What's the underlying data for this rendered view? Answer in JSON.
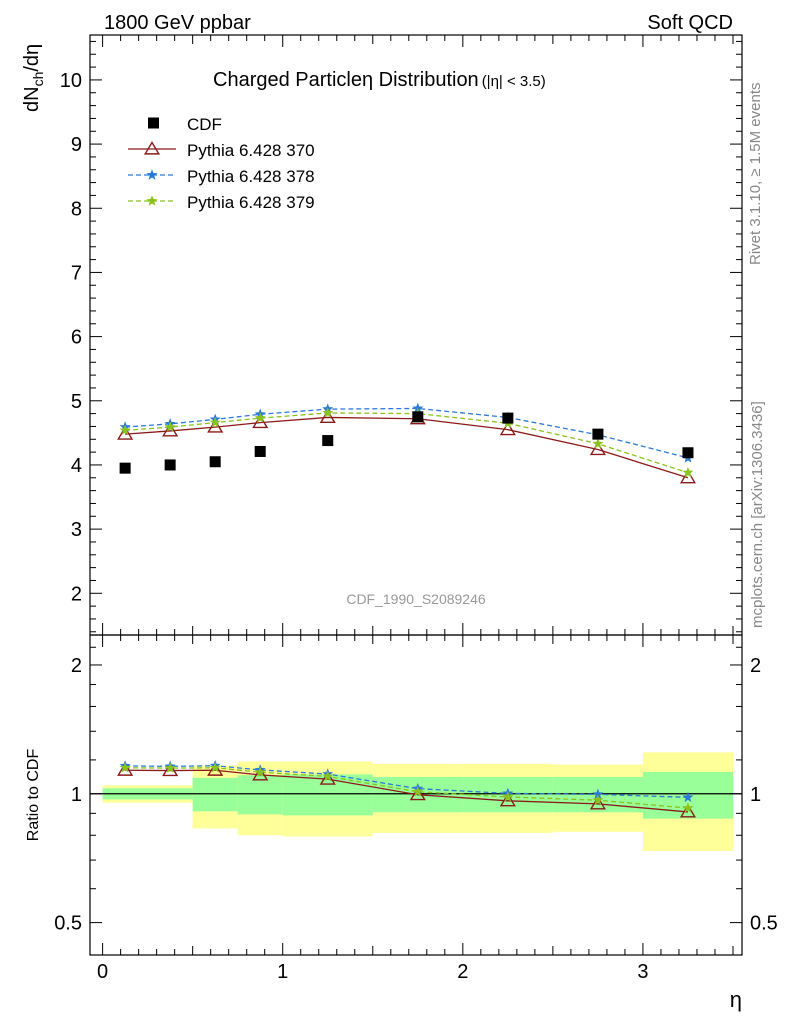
{
  "header": {
    "left": "1800 GeV ppbar",
    "right": "Soft QCD"
  },
  "side": {
    "rivet": "Rivet 3.1.10, ≥ 1.5M events",
    "mcplots": "mcplots.cern.ch [arXiv:1306.3436]"
  },
  "chart_data": {
    "type": "scatter",
    "title": "Charged Particleη Distribution",
    "title_suffix": "(|η| < 3.5)",
    "watermark": "CDF_1990_S2089246",
    "xlabel": "η",
    "ylabel_top": "dN",
    "ylabel_sub": "ch",
    "ylabel_end": "/dη",
    "ylabel_ratio": "Ratio to CDF",
    "xlim": [
      -0.07,
      3.55
    ],
    "ylim_main": [
      1.35,
      10.7
    ],
    "ylim_ratio_log": [
      0.42,
      2.35
    ],
    "x_ticks": [
      0,
      1,
      2,
      3
    ],
    "x_tick_labels": [
      "0",
      "1",
      "2",
      "3"
    ],
    "y_ticks_main": [
      2,
      3,
      4,
      5,
      6,
      7,
      8,
      9,
      10
    ],
    "y_tick_labels_main": [
      "2",
      "3",
      "4",
      "5",
      "6",
      "7",
      "8",
      "9",
      "10"
    ],
    "y_ticks_ratio": [
      0.5,
      1,
      2
    ],
    "y_tick_labels_ratio": [
      "0.5",
      "1",
      "2"
    ],
    "data": {
      "name": "CDF",
      "x": [
        0.125,
        0.375,
        0.625,
        0.875,
        1.25,
        1.75,
        2.25,
        2.75,
        3.25
      ],
      "y": [
        3.95,
        4.0,
        4.05,
        4.21,
        4.38,
        4.75,
        4.73,
        4.48,
        4.19
      ]
    },
    "series": [
      {
        "name": "Pythia 6.428 370",
        "color": "#8b1a1a",
        "marker": "triangle",
        "dash": "solid",
        "x": [
          0.125,
          0.375,
          0.625,
          0.875,
          1.25,
          1.75,
          2.25,
          2.75,
          3.25
        ],
        "y": [
          4.48,
          4.53,
          4.59,
          4.66,
          4.74,
          4.72,
          4.55,
          4.24,
          3.8
        ],
        "ratio": [
          1.135,
          1.133,
          1.135,
          1.107,
          1.082,
          0.995,
          0.963,
          0.947,
          0.907
        ]
      },
      {
        "name": "Pythia 6.428 378",
        "color": "#2b7bd6",
        "marker": "star",
        "dash": "dashed",
        "x": [
          0.125,
          0.375,
          0.625,
          0.875,
          1.25,
          1.75,
          2.25,
          2.75,
          3.25
        ],
        "y": [
          4.59,
          4.64,
          4.71,
          4.79,
          4.87,
          4.88,
          4.74,
          4.47,
          4.11
        ],
        "ratio": [
          1.162,
          1.159,
          1.163,
          1.137,
          1.112,
          1.028,
          1.002,
          0.997,
          0.981
        ]
      },
      {
        "name": "Pythia 6.428 379",
        "color": "#8ac21e",
        "marker": "star",
        "dash": "dashed",
        "x": [
          0.125,
          0.375,
          0.625,
          0.875,
          1.25,
          1.75,
          2.25,
          2.75,
          3.25
        ],
        "y": [
          4.54,
          4.59,
          4.66,
          4.73,
          4.81,
          4.8,
          4.65,
          4.33,
          3.88
        ],
        "ratio": [
          1.15,
          1.148,
          1.15,
          1.123,
          1.098,
          1.011,
          0.983,
          0.966,
          0.926
        ]
      }
    ],
    "bands": [
      {
        "x0": 0.0,
        "x1": 0.5,
        "green": [
          0.97,
          1.03
        ],
        "yellow": [
          0.953,
          1.047
        ]
      },
      {
        "x0": 0.5,
        "x1": 0.75,
        "green": [
          0.91,
          1.09
        ],
        "yellow": [
          0.83,
          1.165
        ]
      },
      {
        "x0": 0.75,
        "x1": 1.0,
        "green": [
          0.895,
          1.105
        ],
        "yellow": [
          0.8,
          1.19
        ]
      },
      {
        "x0": 1.0,
        "x1": 1.5,
        "green": [
          0.89,
          1.11
        ],
        "yellow": [
          0.795,
          1.19
        ]
      },
      {
        "x0": 1.5,
        "x1": 2.0,
        "green": [
          0.905,
          1.095
        ],
        "yellow": [
          0.81,
          1.175
        ]
      },
      {
        "x0": 2.0,
        "x1": 2.5,
        "green": [
          0.905,
          1.095
        ],
        "yellow": [
          0.81,
          1.175
        ]
      },
      {
        "x0": 2.5,
        "x1": 3.0,
        "green": [
          0.905,
          1.095
        ],
        "yellow": [
          0.815,
          1.17
        ]
      },
      {
        "x0": 3.0,
        "x1": 3.5,
        "green": [
          0.875,
          1.125
        ],
        "yellow": [
          0.735,
          1.25
        ]
      }
    ],
    "legend_position": "top-left",
    "colors": {
      "band_green": "#99ff99",
      "band_yellow": "#ffff99"
    }
  }
}
